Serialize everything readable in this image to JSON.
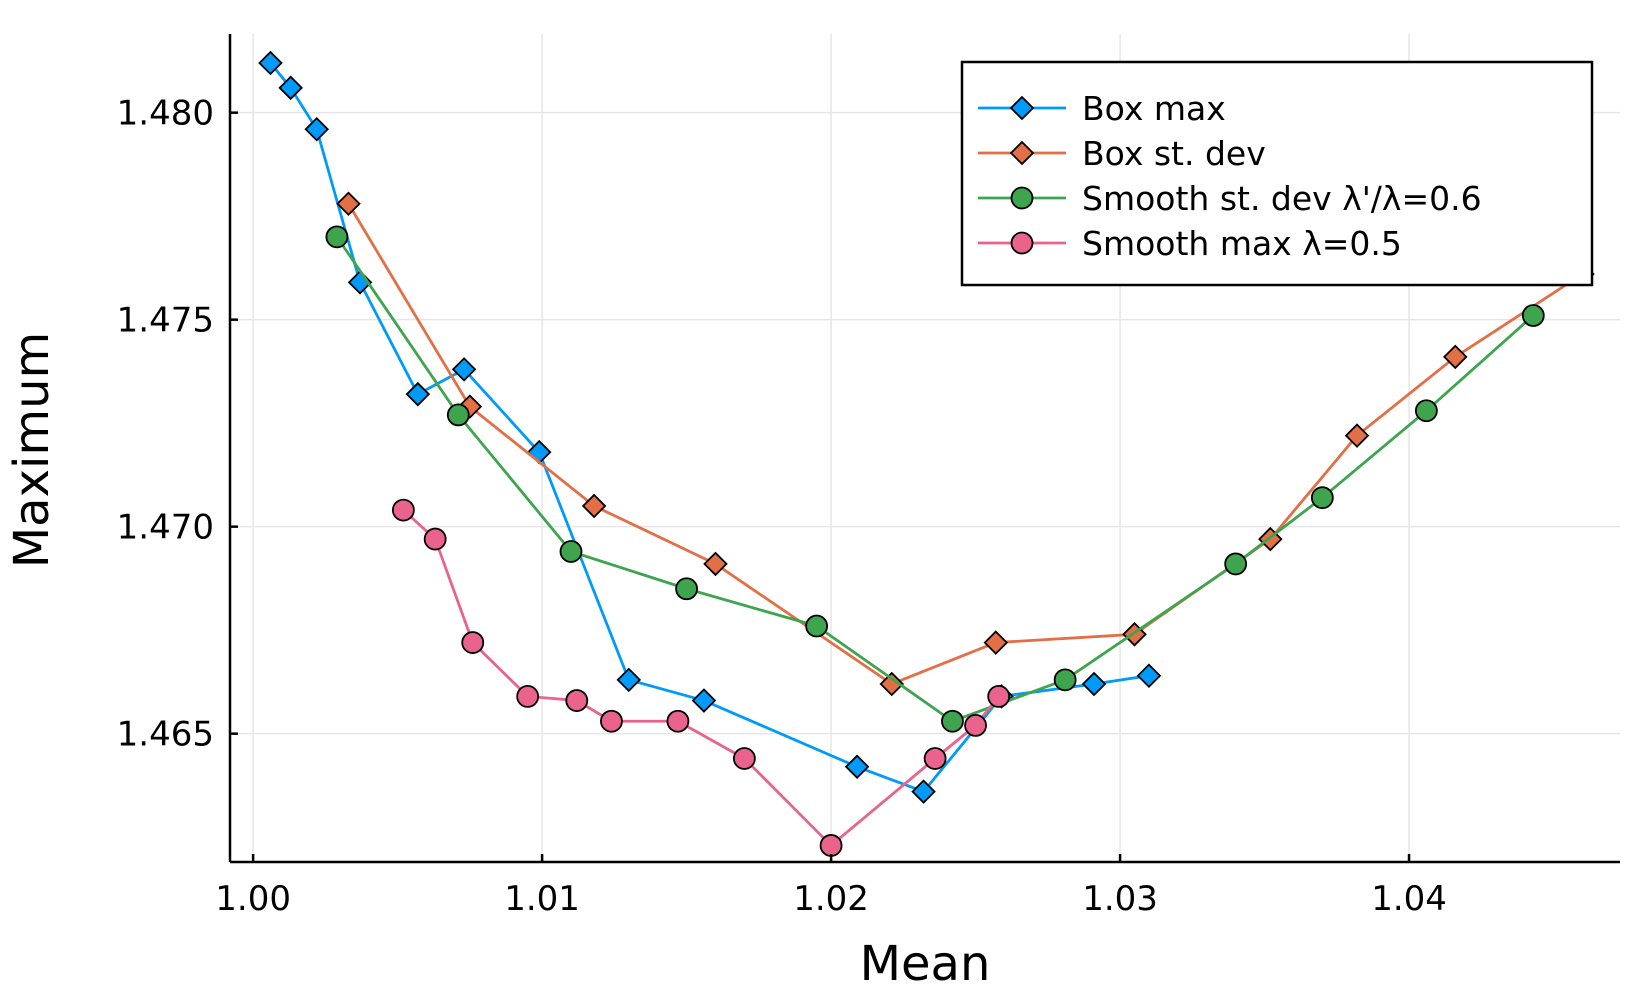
{
  "chart_data": {
    "type": "line",
    "title": "",
    "xlabel": "Mean",
    "ylabel": "Maximum",
    "xlim": [
      0.9992,
      1.0473
    ],
    "ylim": [
      1.4619,
      1.4819
    ],
    "xticks": [
      1.0,
      1.01,
      1.02,
      1.03,
      1.04
    ],
    "xtick_labels": [
      "1.00",
      "1.01",
      "1.02",
      "1.03",
      "1.04"
    ],
    "yticks": [
      1.465,
      1.47,
      1.475,
      1.48
    ],
    "ytick_labels": [
      "1.465",
      "1.470",
      "1.475",
      "1.480"
    ],
    "grid": true,
    "legend_position": "top-right",
    "series": [
      {
        "name": "Box max",
        "color": "#009AFA",
        "marker": "diamond",
        "x": [
          1.0006,
          1.0013,
          1.0022,
          1.0037,
          1.0057,
          1.0073,
          1.0099,
          1.013,
          1.0156,
          1.0209,
          1.0232,
          1.0259,
          1.0291,
          1.031
        ],
        "y": [
          1.4812,
          1.4806,
          1.4796,
          1.4759,
          1.4732,
          1.4738,
          1.4718,
          1.4663,
          1.4658,
          1.4642,
          1.4636,
          1.4659,
          1.4662,
          1.4664
        ]
      },
      {
        "name": "Box st. dev",
        "color": "#E36F47",
        "marker": "diamond",
        "x": [
          1.0033,
          1.0075,
          1.0118,
          1.016,
          1.0221,
          1.0257,
          1.0305,
          1.0352,
          1.0382,
          1.0416,
          1.046
        ],
        "y": [
          1.4778,
          1.4729,
          1.4705,
          1.4691,
          1.4662,
          1.4672,
          1.4674,
          1.4697,
          1.4722,
          1.4741,
          1.4761
        ]
      },
      {
        "name": "Smooth st. dev λ'/λ=0.6",
        "color": "#3EA44E",
        "marker": "circle",
        "x": [
          1.0029,
          1.0071,
          1.011,
          1.015,
          1.0195,
          1.0242,
          1.0281,
          1.034,
          1.037,
          1.0406,
          1.0443
        ],
        "y": [
          1.477,
          1.4727,
          1.4694,
          1.4685,
          1.4676,
          1.4653,
          1.4663,
          1.4691,
          1.4707,
          1.4728,
          1.4751
        ]
      },
      {
        "name": "Smooth max λ=0.5",
        "color": "#E9638D",
        "marker": "circle",
        "x": [
          1.0052,
          1.0063,
          1.0076,
          1.0095,
          1.0112,
          1.0124,
          1.0147,
          1.017,
          1.02,
          1.0236,
          1.025,
          1.0258
        ],
        "y": [
          1.4704,
          1.4697,
          1.4672,
          1.4659,
          1.4658,
          1.4653,
          1.4653,
          1.4644,
          1.4623,
          1.4644,
          1.4652,
          1.4659
        ]
      }
    ]
  }
}
